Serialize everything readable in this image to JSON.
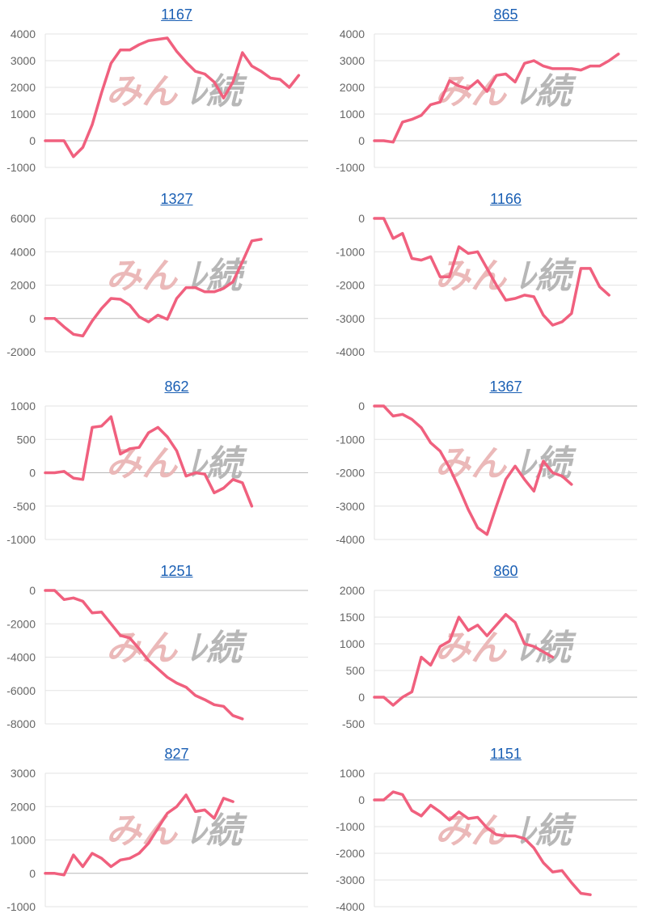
{
  "charts": [
    {
      "title": "1167",
      "yticks": [
        4000,
        3000,
        2000,
        1000,
        0,
        -1000
      ],
      "values": [
        0,
        0,
        0,
        -600,
        -250,
        600,
        1800,
        2900,
        3400,
        3400,
        3600,
        3750,
        3800,
        3850,
        3350,
        2950,
        2600,
        2500,
        2200,
        1600,
        2200,
        3300,
        2800,
        2600,
        2350,
        2300,
        2000,
        2450
      ]
    },
    {
      "title": "865",
      "yticks": [
        4000,
        3000,
        2000,
        1000,
        0,
        -1000
      ],
      "values": [
        0,
        0,
        -50,
        700,
        800,
        950,
        1350,
        1450,
        2250,
        2050,
        1950,
        2250,
        1850,
        2450,
        2500,
        2200,
        2900,
        3000,
        2800,
        2700,
        2700,
        2700,
        2650,
        2800,
        2800,
        3000,
        3250
      ]
    },
    {
      "title": "1327",
      "yticks": [
        6000,
        4000,
        2000,
        0,
        -2000
      ],
      "values": [
        0,
        0,
        -500,
        -950,
        -1050,
        -150,
        600,
        1200,
        1150,
        800,
        100,
        -200,
        200,
        -50,
        1200,
        1850,
        1850,
        1600,
        1600,
        1800,
        2200,
        3400,
        4650,
        4750
      ]
    },
    {
      "title": "1166",
      "yticks": [
        0,
        -1000,
        -2000,
        -3000,
        -4000
      ],
      "values": [
        0,
        0,
        -600,
        -450,
        -1200,
        -1250,
        -1150,
        -1750,
        -1750,
        -850,
        -1050,
        -1000,
        -1500,
        -2000,
        -2450,
        -2400,
        -2300,
        -2350,
        -2900,
        -3200,
        -3100,
        -2850,
        -1500,
        -1500,
        -2050,
        -2300
      ]
    },
    {
      "title": "862",
      "yticks": [
        1000,
        500,
        0,
        -500,
        -1000
      ],
      "values": [
        0,
        0,
        20,
        -80,
        -100,
        680,
        700,
        840,
        280,
        360,
        380,
        600,
        680,
        540,
        330,
        -50,
        0,
        -20,
        -300,
        -230,
        -100,
        -150,
        -500
      ]
    },
    {
      "title": "1367",
      "yticks": [
        0,
        -1000,
        -2000,
        -3000,
        -4000
      ],
      "values": [
        0,
        0,
        -300,
        -250,
        -400,
        -650,
        -1100,
        -1350,
        -1850,
        -2450,
        -3100,
        -3650,
        -3850,
        -3000,
        -2200,
        -1800,
        -2200,
        -2550,
        -1650,
        -2000,
        -2100,
        -2350
      ]
    },
    {
      "title": "1251",
      "yticks": [
        0,
        -2000,
        -4000,
        -6000,
        -8000
      ],
      "values": [
        0,
        0,
        -550,
        -450,
        -650,
        -1350,
        -1300,
        -2000,
        -2700,
        -2850,
        -3500,
        -4200,
        -4700,
        -5200,
        -5550,
        -5800,
        -6300,
        -6550,
        -6850,
        -6950,
        -7500,
        -7700
      ]
    },
    {
      "title": "860",
      "yticks": [
        2000,
        1500,
        1000,
        500,
        0,
        -500
      ],
      "values": [
        0,
        0,
        -150,
        0,
        100,
        750,
        600,
        950,
        1050,
        1500,
        1250,
        1350,
        1150,
        1350,
        1550,
        1400,
        1000,
        950,
        850,
        750
      ]
    },
    {
      "title": "827",
      "yticks": [
        3000,
        2000,
        1000,
        0,
        -1000
      ],
      "values": [
        0,
        0,
        -50,
        550,
        200,
        600,
        450,
        200,
        400,
        450,
        600,
        900,
        1350,
        1800,
        2000,
        2350,
        1850,
        1900,
        1650,
        2250,
        2150
      ]
    },
    {
      "title": "1151",
      "yticks": [
        1000,
        0,
        -1000,
        -2000,
        -3000,
        -4000
      ],
      "values": [
        0,
        0,
        300,
        200,
        -400,
        -600,
        -200,
        -450,
        -750,
        -450,
        -700,
        -650,
        -1050,
        -1300,
        -1350,
        -1350,
        -1450,
        -1800,
        -2350,
        -2700,
        -2650,
        -3100,
        -3500,
        -3550
      ]
    }
  ],
  "chart_data": [
    {
      "type": "line",
      "title": "1167",
      "ylim": [
        -1000,
        4000
      ]
    },
    {
      "type": "line",
      "title": "865",
      "ylim": [
        -1000,
        4000
      ]
    },
    {
      "type": "line",
      "title": "1327",
      "ylim": [
        -2000,
        6000
      ]
    },
    {
      "type": "line",
      "title": "1166",
      "ylim": [
        -4000,
        0
      ]
    },
    {
      "type": "line",
      "title": "862",
      "ylim": [
        -1000,
        1000
      ]
    },
    {
      "type": "line",
      "title": "1367",
      "ylim": [
        -4000,
        0
      ]
    },
    {
      "type": "line",
      "title": "1251",
      "ylim": [
        -8000,
        0
      ]
    },
    {
      "type": "line",
      "title": "860",
      "ylim": [
        -500,
        2000
      ]
    },
    {
      "type": "line",
      "title": "827",
      "ylim": [
        -1000,
        3000
      ]
    },
    {
      "type": "line",
      "title": "1151",
      "ylim": [
        -4000,
        1000
      ]
    }
  ],
  "style": {
    "line_color": "#f0607e",
    "grid_color": "#e3e3e3",
    "axis_color": "#b8b8b8",
    "tick_color": "#666666",
    "title_color": "#1a5fb4",
    "watermark_left_color": "#eab6b6",
    "watermark_right_color": "#b4b4b4"
  },
  "watermark": {
    "left_text": "みん",
    "right_text": "ﾚ続"
  }
}
